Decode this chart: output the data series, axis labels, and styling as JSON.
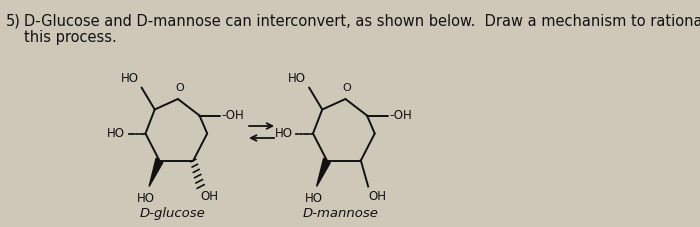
{
  "background_color": "#cdc8b8",
  "text_color": "#111111",
  "question_number": "5)",
  "question_line1": "D-Glucose and D-mannose can interconvert, as shown below.  Draw a mechanism to rationalize",
  "question_line2": "this process.",
  "label_glucose": "D-glucose",
  "label_mannose": "D-mannose",
  "font_size_question": 10.5,
  "font_size_label": 9.5,
  "font_size_oh": 8.5,
  "font_size_o": 8.0
}
